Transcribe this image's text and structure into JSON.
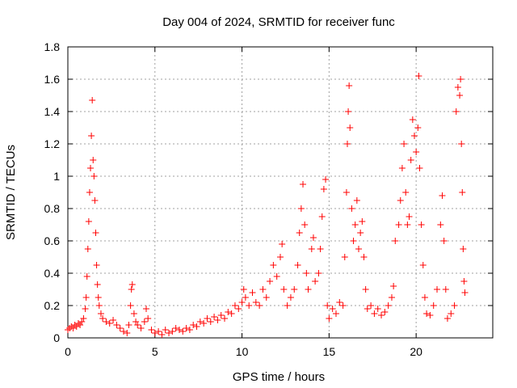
{
  "chart_data": {
    "type": "scatter",
    "title": "Day 004 of 2024, SRMTID for receiver func",
    "xlabel": "GPS time / hours",
    "ylabel": "SRMTID / TECUs",
    "xlim": [
      0,
      24.4
    ],
    "ylim": [
      0,
      1.8
    ],
    "xticks": [
      0,
      5,
      10,
      15,
      20
    ],
    "xtick_labels": [
      "0",
      "5",
      "10",
      "15",
      "20"
    ],
    "yticks": [
      0,
      0.2,
      0.4,
      0.6,
      0.8,
      1.0,
      1.2,
      1.4,
      1.6,
      1.8
    ],
    "ytick_labels": [
      "0",
      "0.2",
      "0.4",
      "0.6",
      "0.8",
      "1",
      "1.2",
      "1.4",
      "1.6",
      "1.8"
    ],
    "grid": true,
    "marker": "+",
    "color": "#ff0000",
    "series": [
      {
        "name": "SRMTID",
        "points": [
          [
            0.0,
            0.05
          ],
          [
            0.1,
            0.06
          ],
          [
            0.2,
            0.07
          ],
          [
            0.3,
            0.06
          ],
          [
            0.4,
            0.08
          ],
          [
            0.5,
            0.07
          ],
          [
            0.6,
            0.09
          ],
          [
            0.7,
            0.08
          ],
          [
            0.8,
            0.1
          ],
          [
            0.9,
            0.12
          ],
          [
            1.0,
            0.18
          ],
          [
            1.05,
            0.25
          ],
          [
            1.1,
            0.38
          ],
          [
            1.15,
            0.55
          ],
          [
            1.2,
            0.72
          ],
          [
            1.25,
            0.9
          ],
          [
            1.3,
            1.05
          ],
          [
            1.35,
            1.25
          ],
          [
            1.4,
            1.47
          ],
          [
            1.45,
            1.1
          ],
          [
            1.5,
            1.0
          ],
          [
            1.55,
            0.85
          ],
          [
            1.6,
            0.65
          ],
          [
            1.65,
            0.45
          ],
          [
            1.7,
            0.33
          ],
          [
            1.75,
            0.25
          ],
          [
            1.8,
            0.2
          ],
          [
            1.9,
            0.15
          ],
          [
            2.0,
            0.12
          ],
          [
            2.2,
            0.1
          ],
          [
            2.4,
            0.09
          ],
          [
            2.6,
            0.11
          ],
          [
            2.8,
            0.08
          ],
          [
            3.0,
            0.06
          ],
          [
            3.2,
            0.04
          ],
          [
            3.4,
            0.03
          ],
          [
            3.5,
            0.08
          ],
          [
            3.6,
            0.2
          ],
          [
            3.65,
            0.3
          ],
          [
            3.7,
            0.33
          ],
          [
            3.8,
            0.15
          ],
          [
            3.9,
            0.1
          ],
          [
            4.0,
            0.08
          ],
          [
            4.2,
            0.06
          ],
          [
            4.4,
            0.1
          ],
          [
            4.5,
            0.18
          ],
          [
            4.6,
            0.12
          ],
          [
            4.8,
            0.05
          ],
          [
            5.0,
            0.03
          ],
          [
            5.2,
            0.04
          ],
          [
            5.4,
            0.02
          ],
          [
            5.6,
            0.05
          ],
          [
            5.8,
            0.03
          ],
          [
            6.0,
            0.04
          ],
          [
            6.2,
            0.06
          ],
          [
            6.4,
            0.05
          ],
          [
            6.6,
            0.04
          ],
          [
            6.8,
            0.06
          ],
          [
            7.0,
            0.05
          ],
          [
            7.2,
            0.08
          ],
          [
            7.4,
            0.07
          ],
          [
            7.6,
            0.1
          ],
          [
            7.8,
            0.09
          ],
          [
            8.0,
            0.12
          ],
          [
            8.2,
            0.1
          ],
          [
            8.4,
            0.13
          ],
          [
            8.6,
            0.11
          ],
          [
            8.8,
            0.14
          ],
          [
            9.0,
            0.12
          ],
          [
            9.2,
            0.16
          ],
          [
            9.4,
            0.15
          ],
          [
            9.6,
            0.2
          ],
          [
            9.8,
            0.18
          ],
          [
            10.0,
            0.22
          ],
          [
            10.1,
            0.3
          ],
          [
            10.2,
            0.25
          ],
          [
            10.4,
            0.2
          ],
          [
            10.6,
            0.28
          ],
          [
            10.8,
            0.22
          ],
          [
            11.0,
            0.2
          ],
          [
            11.2,
            0.3
          ],
          [
            11.4,
            0.25
          ],
          [
            11.6,
            0.35
          ],
          [
            11.8,
            0.45
          ],
          [
            12.0,
            0.38
          ],
          [
            12.2,
            0.5
          ],
          [
            12.3,
            0.58
          ],
          [
            12.4,
            0.3
          ],
          [
            12.6,
            0.2
          ],
          [
            12.8,
            0.25
          ],
          [
            13.0,
            0.3
          ],
          [
            13.2,
            0.45
          ],
          [
            13.3,
            0.65
          ],
          [
            13.4,
            0.8
          ],
          [
            13.5,
            0.95
          ],
          [
            13.6,
            0.7
          ],
          [
            13.7,
            0.4
          ],
          [
            13.8,
            0.3
          ],
          [
            14.0,
            0.55
          ],
          [
            14.1,
            0.62
          ],
          [
            14.2,
            0.35
          ],
          [
            14.4,
            0.4
          ],
          [
            14.5,
            0.55
          ],
          [
            14.6,
            0.75
          ],
          [
            14.7,
            0.92
          ],
          [
            14.8,
            0.98
          ],
          [
            14.9,
            0.2
          ],
          [
            15.0,
            0.12
          ],
          [
            15.2,
            0.18
          ],
          [
            15.4,
            0.15
          ],
          [
            15.6,
            0.22
          ],
          [
            15.8,
            0.2
          ],
          [
            15.9,
            0.5
          ],
          [
            16.0,
            0.9
          ],
          [
            16.05,
            1.2
          ],
          [
            16.1,
            1.4
          ],
          [
            16.15,
            1.56
          ],
          [
            16.2,
            1.3
          ],
          [
            16.3,
            0.8
          ],
          [
            16.4,
            0.6
          ],
          [
            16.5,
            0.7
          ],
          [
            16.6,
            0.85
          ],
          [
            16.7,
            0.55
          ],
          [
            16.8,
            0.65
          ],
          [
            16.9,
            0.72
          ],
          [
            17.0,
            0.5
          ],
          [
            17.1,
            0.3
          ],
          [
            17.2,
            0.18
          ],
          [
            17.4,
            0.2
          ],
          [
            17.6,
            0.15
          ],
          [
            17.8,
            0.18
          ],
          [
            18.0,
            0.14
          ],
          [
            18.2,
            0.16
          ],
          [
            18.4,
            0.2
          ],
          [
            18.6,
            0.25
          ],
          [
            18.7,
            0.32
          ],
          [
            18.8,
            0.6
          ],
          [
            19.0,
            0.7
          ],
          [
            19.1,
            0.85
          ],
          [
            19.2,
            1.05
          ],
          [
            19.3,
            1.2
          ],
          [
            19.4,
            0.9
          ],
          [
            19.5,
            0.7
          ],
          [
            19.6,
            0.75
          ],
          [
            19.7,
            1.1
          ],
          [
            19.8,
            1.35
          ],
          [
            19.9,
            1.25
          ],
          [
            20.0,
            1.15
          ],
          [
            20.1,
            1.3
          ],
          [
            20.15,
            1.62
          ],
          [
            20.2,
            1.05
          ],
          [
            20.3,
            0.7
          ],
          [
            20.4,
            0.45
          ],
          [
            20.5,
            0.25
          ],
          [
            20.6,
            0.15
          ],
          [
            20.8,
            0.14
          ],
          [
            21.0,
            0.2
          ],
          [
            21.2,
            0.3
          ],
          [
            21.4,
            0.7
          ],
          [
            21.5,
            0.88
          ],
          [
            21.6,
            0.6
          ],
          [
            21.7,
            0.3
          ],
          [
            21.8,
            0.12
          ],
          [
            22.0,
            0.15
          ],
          [
            22.2,
            0.2
          ],
          [
            22.3,
            1.4
          ],
          [
            22.4,
            1.55
          ],
          [
            22.5,
            1.5
          ],
          [
            22.55,
            1.6
          ],
          [
            22.6,
            1.2
          ],
          [
            22.65,
            0.9
          ],
          [
            22.7,
            0.55
          ],
          [
            22.75,
            0.35
          ],
          [
            22.8,
            0.28
          ]
        ]
      }
    ]
  }
}
